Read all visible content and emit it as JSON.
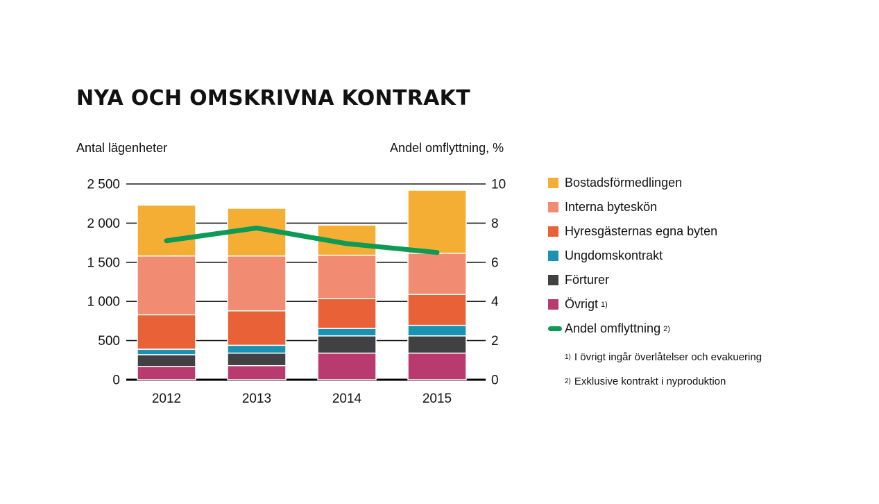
{
  "title": "NYA OCH OMSKRIVNA KONTRAKT",
  "left_axis_title": "Antal lägenheter",
  "right_axis_title": "Andel omflyttning, %",
  "chart_data": {
    "type": "bar",
    "stacked": true,
    "categories": [
      "2012",
      "2013",
      "2014",
      "2015"
    ],
    "y_left": {
      "ticks": [
        0,
        500,
        1000,
        1500,
        2000,
        2500
      ],
      "tick_labels": [
        "0",
        "500",
        "1 000",
        "1 500",
        "2 000",
        "2 500"
      ],
      "ylim": [
        0,
        2500
      ]
    },
    "y_right": {
      "ticks": [
        0,
        2,
        4,
        6,
        8,
        10
      ],
      "tick_labels": [
        "0",
        "2",
        "4",
        "6",
        "8",
        "10"
      ],
      "ylim": [
        0,
        10
      ]
    },
    "grid": true,
    "series": [
      {
        "name": "Övrigt",
        "color": "#b83a6e",
        "values": [
          170,
          180,
          340,
          340
        ]
      },
      {
        "name": "Förturer",
        "color": "#414042",
        "values": [
          150,
          160,
          220,
          220
        ]
      },
      {
        "name": "Ungdomskontrakt",
        "color": "#1a93b3",
        "values": [
          70,
          100,
          95,
          135
        ]
      },
      {
        "name": "Hyresgästernas egna byten",
        "color": "#e96137",
        "values": [
          440,
          440,
          380,
          395
        ]
      },
      {
        "name": "Interna byteskön",
        "color": "#f18b71",
        "values": [
          750,
          700,
          555,
          525
        ]
      },
      {
        "name": "Bostadsförmedlingen",
        "color": "#f3ae33",
        "values": [
          650,
          610,
          385,
          805
        ]
      }
    ],
    "line": {
      "name": "Andel omflyttning",
      "color": "#0c9a55",
      "axis": "right",
      "values": [
        7.1,
        7.75,
        6.95,
        6.5
      ]
    },
    "legend_position": "right"
  },
  "legend": [
    {
      "label": "Bostadsförmedlingen",
      "color": "#f3ae33",
      "sup": ""
    },
    {
      "label": "Interna byteskön",
      "color": "#f18b71",
      "sup": ""
    },
    {
      "label": "Hyresgästernas egna byten",
      "color": "#e96137",
      "sup": ""
    },
    {
      "label": "Ungdomskontrakt",
      "color": "#1a93b3",
      "sup": ""
    },
    {
      "label": "Förturer",
      "color": "#414042",
      "sup": ""
    },
    {
      "label": "Övrigt",
      "color": "#b83a6e",
      "sup": "1)"
    }
  ],
  "legend_line": {
    "label": "Andel omflyttning",
    "color": "#0c9a55",
    "sup": "2)"
  },
  "notes": [
    {
      "mark": "1)",
      "text": "I övrigt ingår överlåtelser och evakuering"
    },
    {
      "mark": "2)",
      "text": "Exklusive kontrakt i nyproduktion"
    }
  ]
}
